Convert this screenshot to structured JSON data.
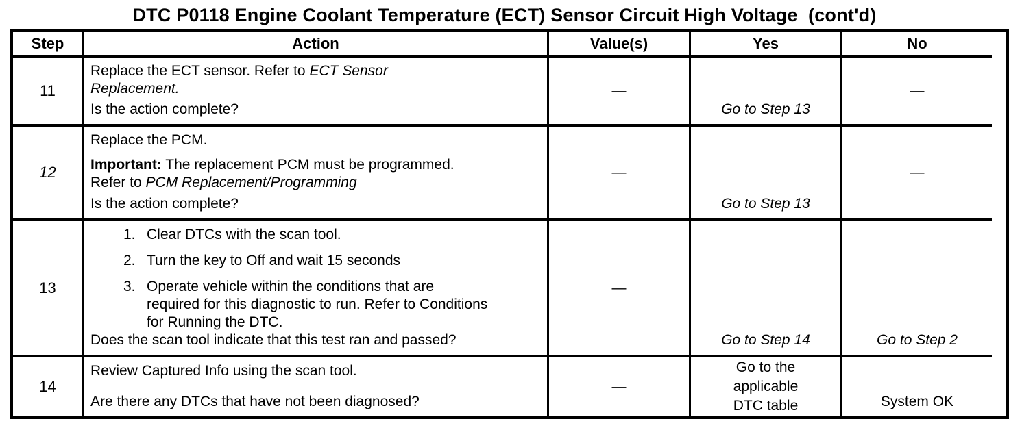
{
  "title": "DTC P0118 Engine Coolant Temperature (ECT) Sensor Circuit High Voltage  (cont'd)",
  "table": {
    "headers": {
      "step": "Step",
      "action": "Action",
      "values": "Value(s)",
      "yes": "Yes",
      "no": "No"
    },
    "rows": [
      {
        "step": "11",
        "action": {
          "sentence_normal": "Replace the ECT sensor. Refer to ",
          "sentence_italic": "ECT Sensor\nReplacement.",
          "question": "Is the action complete?"
        },
        "values": "—",
        "yes": "Go to Step 13",
        "no": "—"
      },
      {
        "step": "12",
        "action": {
          "line1": "Replace the PCM.",
          "important_label": "Important:",
          "important_text": " The replacement PCM must be programmed.\nRefer to ",
          "important_italic": "PCM Replacement/Programming",
          "question": "Is the action complete?"
        },
        "values": "—",
        "yes": "Go to Step 13",
        "no": "—"
      },
      {
        "step": "13",
        "action": {
          "item1_num": "1.",
          "item1": "Clear DTCs with the scan tool.",
          "item2_num": "2.",
          "item2": "Turn the key to Off and wait 15 seconds",
          "item3_num": "3.",
          "item3": "Operate vehicle within the conditions that are\nrequired for this diagnostic to run. Refer to Conditions\nfor Running the DTC.",
          "question": "Does the scan tool indicate that this test ran and passed?"
        },
        "values": "—",
        "yes": "Go to Step 14",
        "no": "Go to Step 2"
      },
      {
        "step": "14",
        "action": {
          "line1": "Review Captured Info using the scan tool.",
          "question": "Are there any DTCs that have not been diagnosed?"
        },
        "values": "—",
        "yes": "Go to the\napplicable\nDTC table",
        "no": "System OK"
      }
    ]
  }
}
